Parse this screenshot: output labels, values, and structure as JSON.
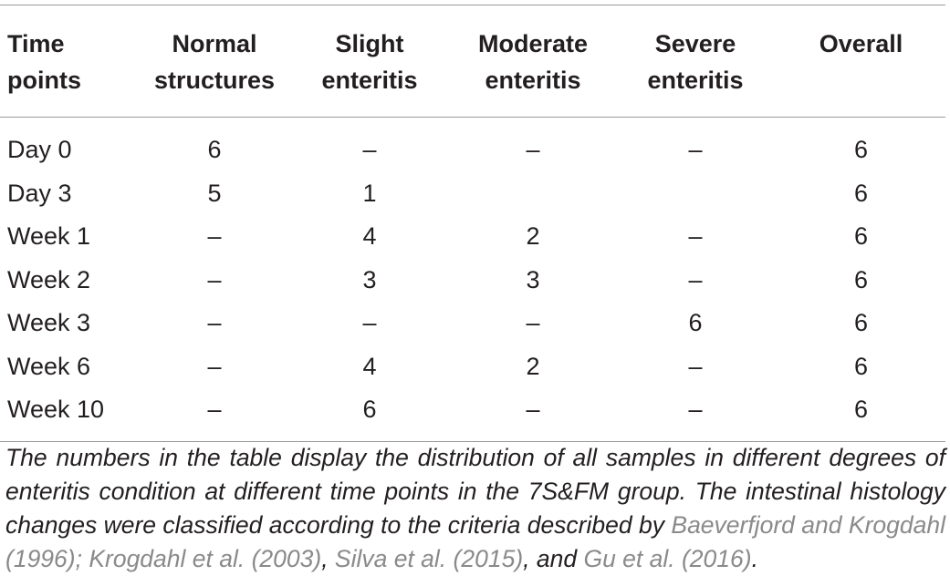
{
  "table": {
    "headers": [
      [
        "Time",
        "points"
      ],
      [
        "Normal",
        "structures"
      ],
      [
        "Slight",
        "enteritis"
      ],
      [
        "Moderate",
        "enteritis"
      ],
      [
        "Severe",
        "enteritis"
      ],
      [
        "Overall",
        ""
      ]
    ],
    "rows": [
      [
        "Day 0",
        "6",
        "–",
        "–",
        "–",
        "6"
      ],
      [
        "Day 3",
        "5",
        "1",
        "",
        "",
        "6"
      ],
      [
        "Week 1",
        "–",
        "4",
        "2",
        "–",
        "6"
      ],
      [
        "Week 2",
        "–",
        "3",
        "3",
        "–",
        "6"
      ],
      [
        "Week 3",
        "–",
        "–",
        "–",
        "6",
        "6"
      ],
      [
        "Week 6",
        "–",
        "4",
        "2",
        "–",
        "6"
      ],
      [
        "Week 10",
        "–",
        "6",
        "–",
        "–",
        "6"
      ]
    ]
  },
  "caption": {
    "text": "The numbers in the table display the distribution of all samples in different degrees of enteritis condition at different time points in the 7S&FM group. The intestinal histology changes were classified according to the criteria described by ",
    "cite1": "Baeverfjord and Krogdahl (1996); Krogdahl et al. (2003)",
    "sep1": ", ",
    "cite2": "Silva et al. (2015)",
    "sep2": ", and ",
    "cite3": "Gu et al. (2016)",
    "end": "."
  }
}
